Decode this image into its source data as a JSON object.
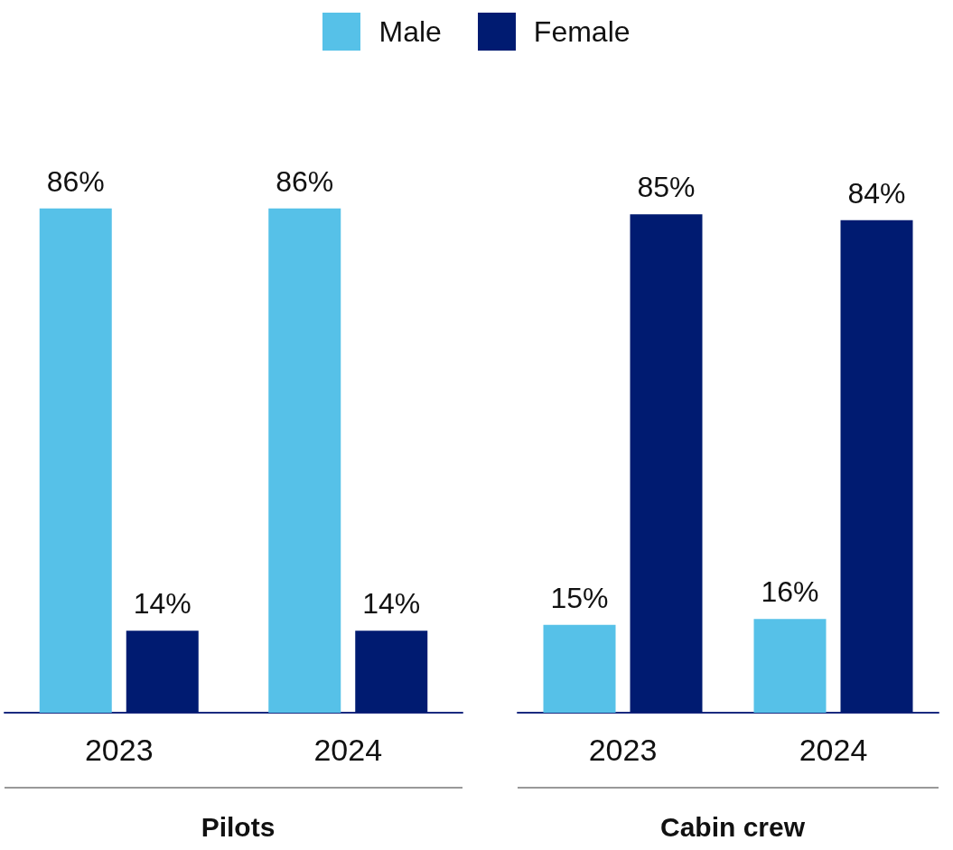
{
  "chart_data": [
    {
      "type": "bar",
      "title": "Pilots",
      "categories": [
        "2023",
        "2024"
      ],
      "series": [
        {
          "name": "Male",
          "color": "#56c1e8",
          "values": [
            86,
            86
          ],
          "value_labels": [
            "86%",
            "86%"
          ]
        },
        {
          "name": "Female",
          "color": "#001b71",
          "values": [
            14,
            14
          ],
          "value_labels": [
            "14%",
            "14%"
          ]
        }
      ],
      "legend": "top"
    },
    {
      "type": "bar",
      "title": "Cabin crew",
      "categories": [
        "2023",
        "2024"
      ],
      "series": [
        {
          "color": "#56c1e8",
          "values": [
            15,
            16
          ],
          "value_labels": [
            "15%",
            "16%"
          ]
        },
        {
          "color": "#001b71",
          "values": [
            85,
            84
          ],
          "value_labels": [
            "85%",
            "84%"
          ]
        }
      ]
    }
  ]
}
